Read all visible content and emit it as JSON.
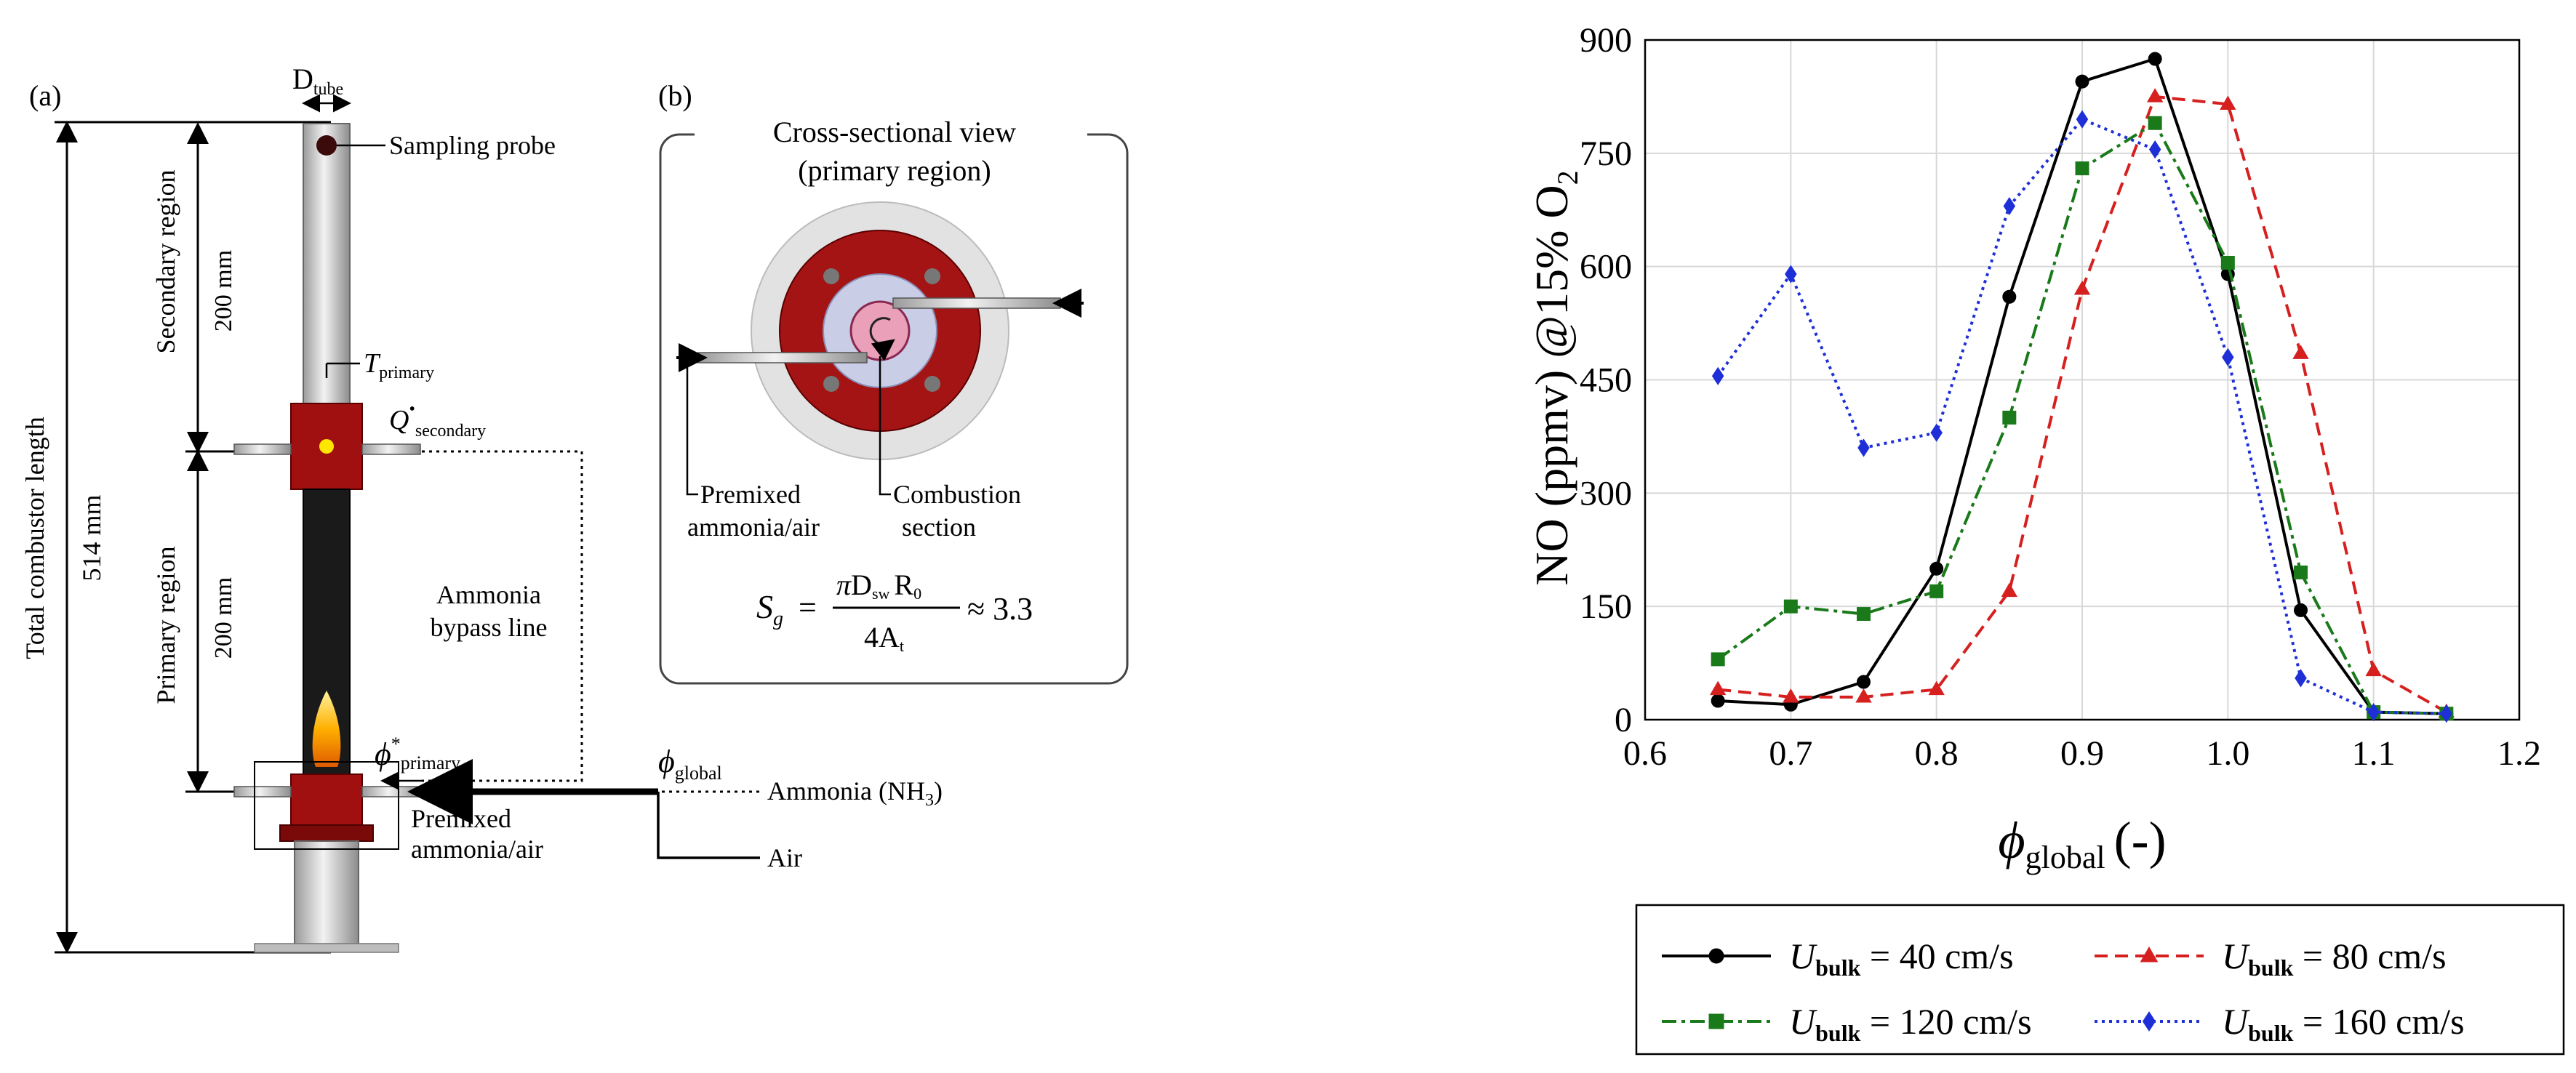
{
  "schematic_a": {
    "panel_label": "(a)",
    "d_tube_main": "D",
    "d_tube_sub": "tube",
    "sampling_probe": "Sampling probe",
    "secondary_region": "Secondary region",
    "primary_region": "Primary region",
    "len_200_top": "200 mm",
    "len_200_bottom": "200 mm",
    "total_length": "Total combustor length",
    "len_514": "514 mm",
    "t_primary_main": "T",
    "t_primary_sub": "primary",
    "q_secondary_main": "Q",
    "q_secondary_sup": "•",
    "q_secondary_sub": "secondary",
    "phi_primary_main": "ϕ",
    "phi_primary_sup": "*",
    "phi_primary_sub": "primary",
    "phi_global_main": "ϕ",
    "phi_global_sub": "global",
    "ammonia_bypass_1": "Ammonia",
    "ammonia_bypass_2": "bypass line",
    "ammonia_nh3": "Ammonia (NH",
    "ammonia_nh3_sub": "3",
    "ammonia_nh3_close": ")",
    "premixed_1": "Premixed",
    "premixed_2": "ammonia/air",
    "air": "Air"
  },
  "schematic_b": {
    "panel_label": "(b)",
    "title_1": "Cross-sectional view",
    "title_2": "(primary region)",
    "premixed_1": "Premixed",
    "premixed_2": "ammonia/air",
    "combustion_1": "Combustion",
    "combustion_2": "section",
    "eq_lhs": "S",
    "eq_lhs_sub": "g",
    "eq_eq": "=",
    "eq_num_pi": "π",
    "eq_num_d": "D",
    "eq_num_d_sub": "sw",
    "eq_num_r": "R",
    "eq_num_r_sub": "0",
    "eq_den": "4A",
    "eq_den_sub": "t",
    "eq_rhs": "≈ 3.3"
  },
  "chart_data": {
    "type": "line",
    "title": "",
    "xlabel_main": "ϕ",
    "xlabel_sub": "global",
    "xlabel_rest": "(-)",
    "ylabel": "NO (ppmv) @15% O",
    "ylabel_sub": "2",
    "xlim": [
      0.6,
      1.2
    ],
    "ylim": [
      0,
      900
    ],
    "xticks": [
      0.6,
      0.7,
      0.8,
      0.9,
      1.0,
      1.1,
      1.2
    ],
    "xtick_labels": [
      "0.6",
      "0.7",
      "0.8",
      "0.9",
      "1.0",
      "1.1",
      "1.2"
    ],
    "yticks": [
      0,
      150,
      300,
      450,
      600,
      750,
      900
    ],
    "ytick_labels": [
      "0",
      "150",
      "300",
      "450",
      "600",
      "750",
      "900"
    ],
    "grid": true,
    "legend_position": "bottom",
    "x": [
      0.65,
      0.7,
      0.75,
      0.8,
      0.85,
      0.9,
      0.95,
      1.0,
      1.05,
      1.1,
      1.15
    ],
    "series": [
      {
        "name": "U_bulk = 40 cm/s",
        "label_main": "U",
        "label_sub": "bulk",
        "label_rest": " = 40 cm/s",
        "color": "#000000",
        "marker": "circle",
        "dash": "",
        "values": [
          25,
          20,
          50,
          200,
          560,
          845,
          875,
          590,
          145,
          10,
          8
        ]
      },
      {
        "name": "U_bulk = 80 cm/s",
        "label_main": "U",
        "label_sub": "bulk",
        "label_rest": " = 80 cm/s",
        "color": "#d62020",
        "marker": "triangle",
        "dash": "18,10",
        "values": [
          40,
          30,
          30,
          40,
          170,
          570,
          825,
          815,
          485,
          65,
          10
        ]
      },
      {
        "name": "U_bulk = 120 cm/s",
        "label_main": "U",
        "label_sub": "bulk",
        "label_rest": " = 120 cm/s",
        "color": "#1a7a1a",
        "marker": "square",
        "dash": "20,7,5,7",
        "values": [
          80,
          150,
          140,
          170,
          400,
          730,
          790,
          605,
          195,
          10,
          8
        ]
      },
      {
        "name": "U_bulk = 160 cm/s",
        "label_main": "U",
        "label_sub": "bulk",
        "label_rest": " = 160 cm/s",
        "color": "#1e2fd8",
        "marker": "diamond",
        "dash": "4,6",
        "values": [
          455,
          590,
          360,
          380,
          680,
          795,
          755,
          480,
          55,
          10,
          8
        ]
      }
    ]
  }
}
